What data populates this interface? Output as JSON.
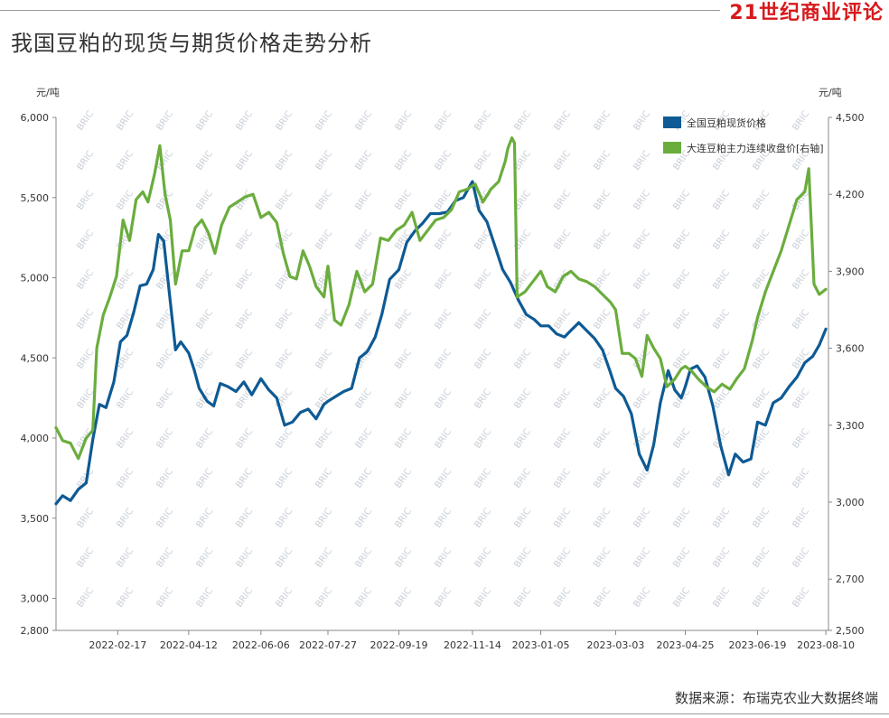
{
  "title": "我国豆粕的现货与期货价格走势分析",
  "brand": "21世纪商业评论",
  "source": "数据来源：布瑞克农业大数据终端",
  "colors": {
    "spot": "#0e5a94",
    "futures": "#6aad3d",
    "axis": "#888888"
  },
  "chart_data": {
    "type": "line",
    "left_axis": {
      "unit": "元/吨",
      "ticks": [
        2800,
        3000,
        3500,
        4000,
        4500,
        5000,
        5500,
        6000
      ],
      "tick_labels": [
        "2,800",
        "3,000",
        "3,500",
        "4,000",
        "4,500",
        "5,000",
        "5,500",
        "6,000"
      ],
      "range": [
        2800,
        6000
      ]
    },
    "right_axis": {
      "unit": "元/吨",
      "ticks": [
        2500,
        2700,
        3000,
        3300,
        3600,
        3900,
        4200,
        4500
      ],
      "tick_labels": [
        "2,500",
        "2,700",
        "3,000",
        "3,300",
        "3,600",
        "3,900",
        "4,200",
        "4,500"
      ],
      "range": [
        2500,
        4500
      ]
    },
    "x_tick_labels": [
      "2022-02-17",
      "2022-04-12",
      "2022-06-06",
      "2022-07-27",
      "2022-09-19",
      "2022-11-14",
      "2023-01-05",
      "2023-03-03",
      "2023-04-25",
      "2023-06-19",
      "2023-08-10"
    ],
    "x_range": [
      "2022-01-01",
      "2023-08-12"
    ],
    "legend_position": "top-right",
    "series": [
      {
        "name": "全国豆粕现货价格",
        "axis": "left",
        "points": [
          [
            "2022-01-01",
            3590
          ],
          [
            "2022-01-06",
            3640
          ],
          [
            "2022-01-12",
            3610
          ],
          [
            "2022-01-18",
            3680
          ],
          [
            "2022-01-24",
            3720
          ],
          [
            "2022-01-29",
            3990
          ],
          [
            "2022-02-03",
            4210
          ],
          [
            "2022-02-08",
            4190
          ],
          [
            "2022-02-14",
            4350
          ],
          [
            "2022-02-19",
            4600
          ],
          [
            "2022-02-24",
            4640
          ],
          [
            "2022-03-01",
            4780
          ],
          [
            "2022-03-06",
            4950
          ],
          [
            "2022-03-11",
            4960
          ],
          [
            "2022-03-16",
            5050
          ],
          [
            "2022-03-20",
            5270
          ],
          [
            "2022-03-24",
            5230
          ],
          [
            "2022-03-29",
            4850
          ],
          [
            "2022-04-02",
            4550
          ],
          [
            "2022-04-06",
            4600
          ],
          [
            "2022-04-12",
            4530
          ],
          [
            "2022-04-16",
            4430
          ],
          [
            "2022-04-20",
            4310
          ],
          [
            "2022-04-26",
            4230
          ],
          [
            "2022-05-01",
            4200
          ],
          [
            "2022-05-06",
            4340
          ],
          [
            "2022-05-12",
            4320
          ],
          [
            "2022-05-18",
            4290
          ],
          [
            "2022-05-24",
            4350
          ],
          [
            "2022-05-30",
            4270
          ],
          [
            "2022-06-06",
            4370
          ],
          [
            "2022-06-12",
            4300
          ],
          [
            "2022-06-18",
            4250
          ],
          [
            "2022-06-24",
            4080
          ],
          [
            "2022-06-30",
            4100
          ],
          [
            "2022-07-06",
            4160
          ],
          [
            "2022-07-12",
            4180
          ],
          [
            "2022-07-18",
            4120
          ],
          [
            "2022-07-24",
            4210
          ],
          [
            "2022-07-27",
            4230
          ],
          [
            "2022-08-02",
            4260
          ],
          [
            "2022-08-08",
            4290
          ],
          [
            "2022-08-14",
            4310
          ],
          [
            "2022-08-20",
            4500
          ],
          [
            "2022-08-26",
            4540
          ],
          [
            "2022-09-01",
            4630
          ],
          [
            "2022-09-06",
            4770
          ],
          [
            "2022-09-12",
            4990
          ],
          [
            "2022-09-19",
            5050
          ],
          [
            "2022-09-25",
            5220
          ],
          [
            "2022-10-01",
            5290
          ],
          [
            "2022-10-07",
            5340
          ],
          [
            "2022-10-13",
            5400
          ],
          [
            "2022-10-20",
            5400
          ],
          [
            "2022-10-26",
            5410
          ],
          [
            "2022-11-01",
            5480
          ],
          [
            "2022-11-07",
            5500
          ],
          [
            "2022-11-14",
            5600
          ],
          [
            "2022-11-19",
            5420
          ],
          [
            "2022-11-25",
            5350
          ],
          [
            "2022-12-01",
            5200
          ],
          [
            "2022-12-07",
            5050
          ],
          [
            "2022-12-13",
            4970
          ],
          [
            "2022-12-19",
            4860
          ],
          [
            "2022-12-25",
            4770
          ],
          [
            "2022-12-31",
            4740
          ],
          [
            "2023-01-05",
            4700
          ],
          [
            "2023-01-11",
            4700
          ],
          [
            "2023-01-17",
            4650
          ],
          [
            "2023-01-23",
            4630
          ],
          [
            "2023-01-29",
            4680
          ],
          [
            "2023-02-03",
            4720
          ],
          [
            "2023-02-09",
            4670
          ],
          [
            "2023-02-15",
            4620
          ],
          [
            "2023-02-21",
            4550
          ],
          [
            "2023-02-27",
            4410
          ],
          [
            "2023-03-03",
            4310
          ],
          [
            "2023-03-09",
            4260
          ],
          [
            "2023-03-15",
            4150
          ],
          [
            "2023-03-21",
            3900
          ],
          [
            "2023-03-27",
            3800
          ],
          [
            "2023-04-01",
            3960
          ],
          [
            "2023-04-06",
            4220
          ],
          [
            "2023-04-12",
            4420
          ],
          [
            "2023-04-17",
            4300
          ],
          [
            "2023-04-22",
            4250
          ],
          [
            "2023-04-25",
            4320
          ],
          [
            "2023-04-29",
            4430
          ],
          [
            "2023-05-04",
            4450
          ],
          [
            "2023-05-10",
            4380
          ],
          [
            "2023-05-16",
            4200
          ],
          [
            "2023-05-22",
            3950
          ],
          [
            "2023-05-28",
            3770
          ],
          [
            "2023-06-02",
            3900
          ],
          [
            "2023-06-08",
            3850
          ],
          [
            "2023-06-14",
            3870
          ],
          [
            "2023-06-19",
            4100
          ],
          [
            "2023-06-25",
            4080
          ],
          [
            "2023-07-01",
            4220
          ],
          [
            "2023-07-07",
            4250
          ],
          [
            "2023-07-13",
            4320
          ],
          [
            "2023-07-19",
            4380
          ],
          [
            "2023-07-25",
            4470
          ],
          [
            "2023-07-31",
            4510
          ],
          [
            "2023-08-05",
            4580
          ],
          [
            "2023-08-10",
            4680
          ]
        ]
      },
      {
        "name": "大连豆粕主力连续收盘价[右轴]",
        "axis": "right",
        "points": [
          [
            "2022-01-01",
            3290
          ],
          [
            "2022-01-06",
            3240
          ],
          [
            "2022-01-12",
            3230
          ],
          [
            "2022-01-18",
            3170
          ],
          [
            "2022-01-24",
            3250
          ],
          [
            "2022-01-29",
            3280
          ],
          [
            "2022-02-01",
            3600
          ],
          [
            "2022-02-06",
            3730
          ],
          [
            "2022-02-11",
            3800
          ],
          [
            "2022-02-16",
            3880
          ],
          [
            "2022-02-21",
            4100
          ],
          [
            "2022-02-26",
            4020
          ],
          [
            "2022-03-03",
            4180
          ],
          [
            "2022-03-08",
            4210
          ],
          [
            "2022-03-12",
            4170
          ],
          [
            "2022-03-17",
            4280
          ],
          [
            "2022-03-21",
            4390
          ],
          [
            "2022-03-25",
            4200
          ],
          [
            "2022-03-29",
            4100
          ],
          [
            "2022-04-02",
            3850
          ],
          [
            "2022-04-07",
            3980
          ],
          [
            "2022-04-12",
            3980
          ],
          [
            "2022-04-17",
            4070
          ],
          [
            "2022-04-22",
            4100
          ],
          [
            "2022-04-27",
            4050
          ],
          [
            "2022-05-02",
            3970
          ],
          [
            "2022-05-07",
            4080
          ],
          [
            "2022-05-13",
            4150
          ],
          [
            "2022-05-19",
            4170
          ],
          [
            "2022-05-25",
            4190
          ],
          [
            "2022-05-31",
            4200
          ],
          [
            "2022-06-06",
            4110
          ],
          [
            "2022-06-12",
            4130
          ],
          [
            "2022-06-18",
            4090
          ],
          [
            "2022-06-23",
            3970
          ],
          [
            "2022-06-28",
            3880
          ],
          [
            "2022-07-03",
            3870
          ],
          [
            "2022-07-08",
            3980
          ],
          [
            "2022-07-13",
            3920
          ],
          [
            "2022-07-18",
            3840
          ],
          [
            "2022-07-24",
            3800
          ],
          [
            "2022-07-27",
            3920
          ],
          [
            "2022-08-01",
            3710
          ],
          [
            "2022-08-06",
            3690
          ],
          [
            "2022-08-12",
            3770
          ],
          [
            "2022-08-18",
            3900
          ],
          [
            "2022-08-24",
            3820
          ],
          [
            "2022-08-30",
            3850
          ],
          [
            "2022-09-05",
            4030
          ],
          [
            "2022-09-11",
            4020
          ],
          [
            "2022-09-17",
            4060
          ],
          [
            "2022-09-23",
            4080
          ],
          [
            "2022-09-29",
            4130
          ],
          [
            "2022-10-05",
            4020
          ],
          [
            "2022-10-11",
            4060
          ],
          [
            "2022-10-17",
            4100
          ],
          [
            "2022-10-23",
            4110
          ],
          [
            "2022-10-29",
            4140
          ],
          [
            "2022-11-04",
            4210
          ],
          [
            "2022-11-10",
            4220
          ],
          [
            "2022-11-16",
            4240
          ],
          [
            "2022-11-22",
            4170
          ],
          [
            "2022-11-28",
            4220
          ],
          [
            "2022-12-04",
            4250
          ],
          [
            "2022-12-09",
            4330
          ],
          [
            "2022-12-11",
            4380
          ],
          [
            "2022-12-14",
            4420
          ],
          [
            "2022-12-16",
            4400
          ],
          [
            "2022-12-18",
            3800
          ],
          [
            "2022-12-24",
            3820
          ],
          [
            "2022-12-30",
            3860
          ],
          [
            "2023-01-05",
            3900
          ],
          [
            "2023-01-10",
            3840
          ],
          [
            "2023-01-16",
            3820
          ],
          [
            "2023-01-22",
            3880
          ],
          [
            "2023-01-28",
            3900
          ],
          [
            "2023-02-03",
            3870
          ],
          [
            "2023-02-09",
            3860
          ],
          [
            "2023-02-15",
            3840
          ],
          [
            "2023-02-21",
            3810
          ],
          [
            "2023-02-27",
            3780
          ],
          [
            "2023-03-03",
            3750
          ],
          [
            "2023-03-08",
            3580
          ],
          [
            "2023-03-13",
            3580
          ],
          [
            "2023-03-18",
            3560
          ],
          [
            "2023-03-23",
            3490
          ],
          [
            "2023-03-27",
            3650
          ],
          [
            "2023-04-01",
            3600
          ],
          [
            "2023-04-06",
            3560
          ],
          [
            "2023-04-11",
            3450
          ],
          [
            "2023-04-17",
            3480
          ],
          [
            "2023-04-22",
            3520
          ],
          [
            "2023-04-25",
            3530
          ],
          [
            "2023-04-30",
            3510
          ],
          [
            "2023-05-05",
            3480
          ],
          [
            "2023-05-11",
            3450
          ],
          [
            "2023-05-17",
            3430
          ],
          [
            "2023-05-23",
            3460
          ],
          [
            "2023-05-29",
            3440
          ],
          [
            "2023-06-03",
            3480
          ],
          [
            "2023-06-09",
            3520
          ],
          [
            "2023-06-15",
            3630
          ],
          [
            "2023-06-19",
            3720
          ],
          [
            "2023-06-25",
            3820
          ],
          [
            "2023-07-01",
            3900
          ],
          [
            "2023-07-07",
            3980
          ],
          [
            "2023-07-13",
            4080
          ],
          [
            "2023-07-19",
            4180
          ],
          [
            "2023-07-25",
            4210
          ],
          [
            "2023-07-28",
            4300
          ],
          [
            "2023-08-01",
            3850
          ],
          [
            "2023-08-05",
            3810
          ],
          [
            "2023-08-10",
            3830
          ]
        ]
      }
    ]
  }
}
